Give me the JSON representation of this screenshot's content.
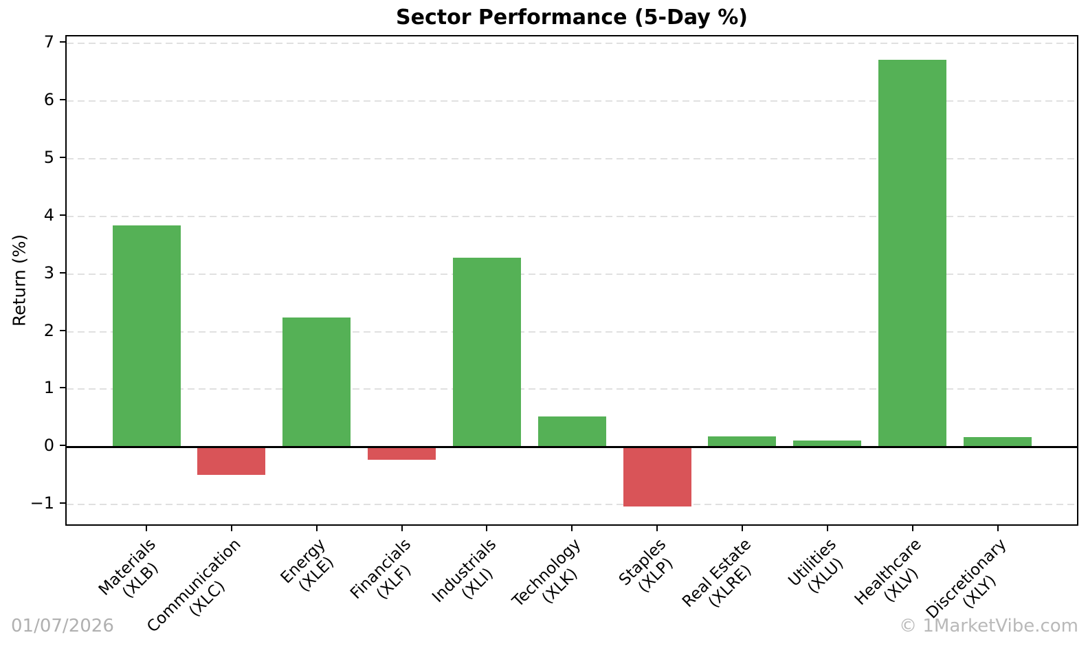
{
  "title": "Sector Performance (5-Day %)",
  "footer": {
    "date": "01/07/2026",
    "watermark": "© 1MarketVibe.com"
  },
  "colors": {
    "positive_bar": "#55b156",
    "negative_bar": "#d95458",
    "gridline": "#e0e0e0",
    "axis": "#000000",
    "footer_text": "#b0b0b0",
    "background": "#ffffff"
  },
  "chart_data": {
    "type": "bar",
    "title": "Sector Performance (5-Day %)",
    "xlabel": "",
    "ylabel": "Return (%)",
    "categories": [
      {
        "name": "Materials",
        "ticker": "(XLB)"
      },
      {
        "name": "Communication",
        "ticker": "(XLC)"
      },
      {
        "name": "Energy",
        "ticker": "(XLE)"
      },
      {
        "name": "Financials",
        "ticker": "(XLF)"
      },
      {
        "name": "Industrials",
        "ticker": "(XLI)"
      },
      {
        "name": "Technology",
        "ticker": "(XLK)"
      },
      {
        "name": "Staples",
        "ticker": "(XLP)"
      },
      {
        "name": "Real Estate",
        "ticker": "(XLRE)"
      },
      {
        "name": "Utilities",
        "ticker": "(XLU)"
      },
      {
        "name": "Healthcare",
        "ticker": "(XLV)"
      },
      {
        "name": "Discretionary",
        "ticker": "(XLY)"
      }
    ],
    "values": [
      3.84,
      -0.48,
      2.25,
      -0.22,
      3.28,
      0.53,
      -1.03,
      0.18,
      0.11,
      6.72,
      0.17
    ],
    "yticks": [
      -1,
      0,
      1,
      2,
      3,
      4,
      5,
      6,
      7
    ],
    "ytick_labels": [
      "−1",
      "0",
      "1",
      "2",
      "3",
      "4",
      "5",
      "6",
      "7"
    ],
    "ylim": [
      -1.39,
      7.12
    ],
    "grid": "horizontal-dashed",
    "legend": "none",
    "zero_line": true
  }
}
